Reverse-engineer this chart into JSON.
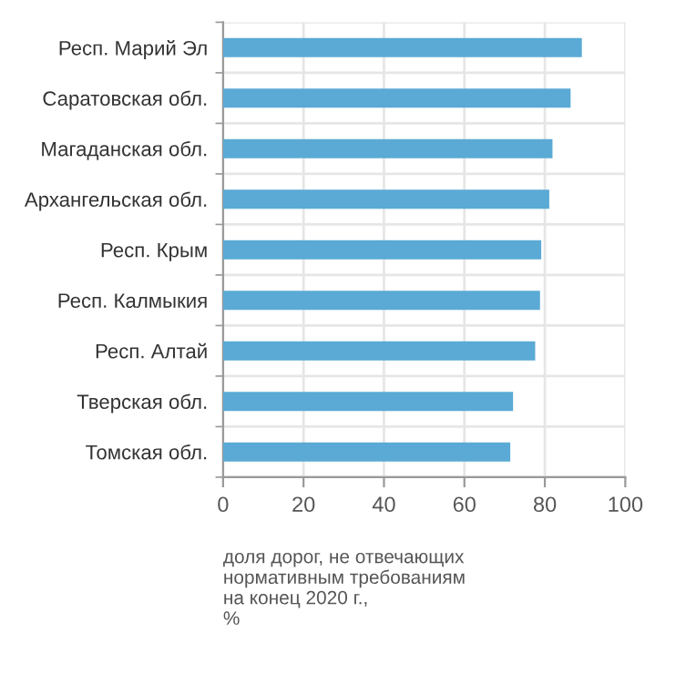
{
  "chart_data": {
    "type": "bar",
    "orientation": "horizontal",
    "categories": [
      "Респ. Марий Эл",
      "Саратовская обл.",
      "Магаданская обл.",
      "Архангельская обл.",
      "Респ. Крым",
      "Респ. Калмыкия",
      "Респ. Алтай",
      "Тверская обл.",
      "Томская обл."
    ],
    "values": [
      89.2,
      86.4,
      81.9,
      81.1,
      79.1,
      78.8,
      77.6,
      72.1,
      71.4
    ],
    "color": "#5aaad5",
    "xlim": [
      0,
      100
    ],
    "xticks": [
      0,
      20,
      40,
      60,
      80,
      100
    ],
    "xlabel": "доля дорог, не отвечающих\nнормативным требованиям\nна конец 2020 г.,\n%",
    "grid": true
  }
}
